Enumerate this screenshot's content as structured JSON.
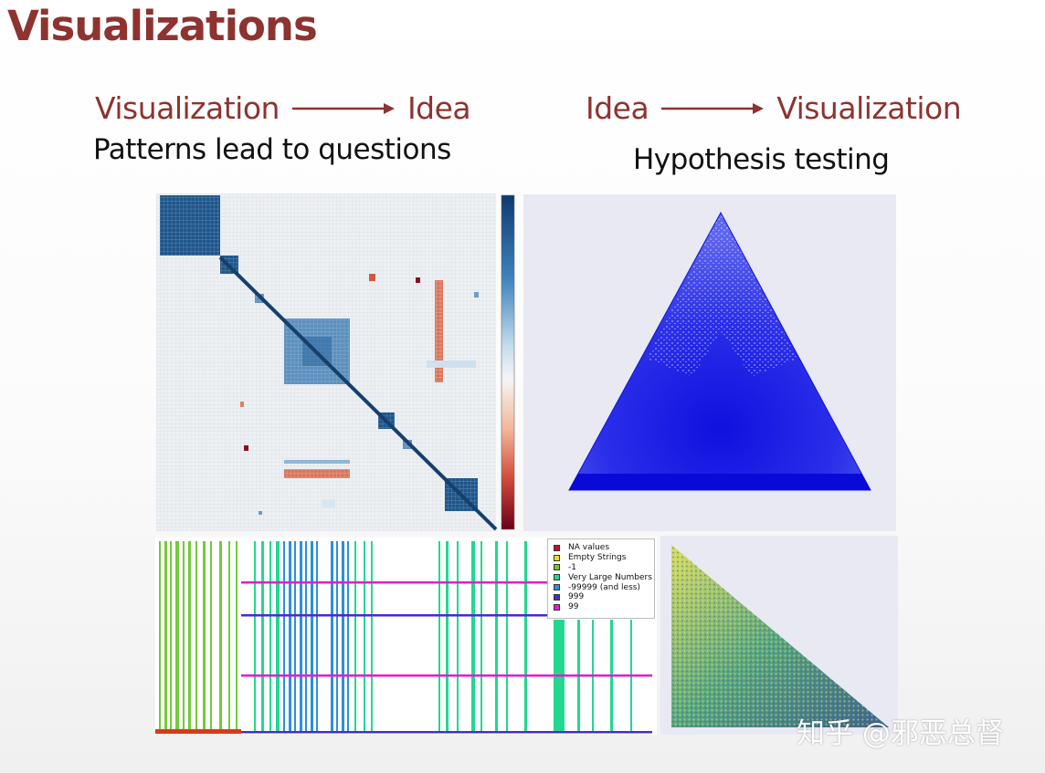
{
  "slide": {
    "title": "Visualizations",
    "left_flow": {
      "from": "Visualization",
      "to": "Idea",
      "caption": "Patterns lead to questions"
    },
    "right_flow": {
      "from": "Idea",
      "to": "Visualization",
      "caption": "Hypothesis testing"
    },
    "watermark": "知乎 @邪恶总督"
  },
  "missing_values_legend": [
    {
      "label": "NA values",
      "color": "#c8102e"
    },
    {
      "label": "Empty Strings",
      "color": "#e8e020"
    },
    {
      "label": "-1",
      "color": "#6cc830"
    },
    {
      "label": "Very Large Numbers",
      "color": "#22d890"
    },
    {
      "label": "-99999 (and less)",
      "color": "#2c8ee0"
    },
    {
      "label": "999",
      "color": "#4a2cc8"
    },
    {
      "label": "99",
      "color": "#e01ed0"
    }
  ],
  "colors": {
    "title": "#8e3330",
    "caption": "#111111",
    "triangle_points": "#1a1ee8"
  }
}
